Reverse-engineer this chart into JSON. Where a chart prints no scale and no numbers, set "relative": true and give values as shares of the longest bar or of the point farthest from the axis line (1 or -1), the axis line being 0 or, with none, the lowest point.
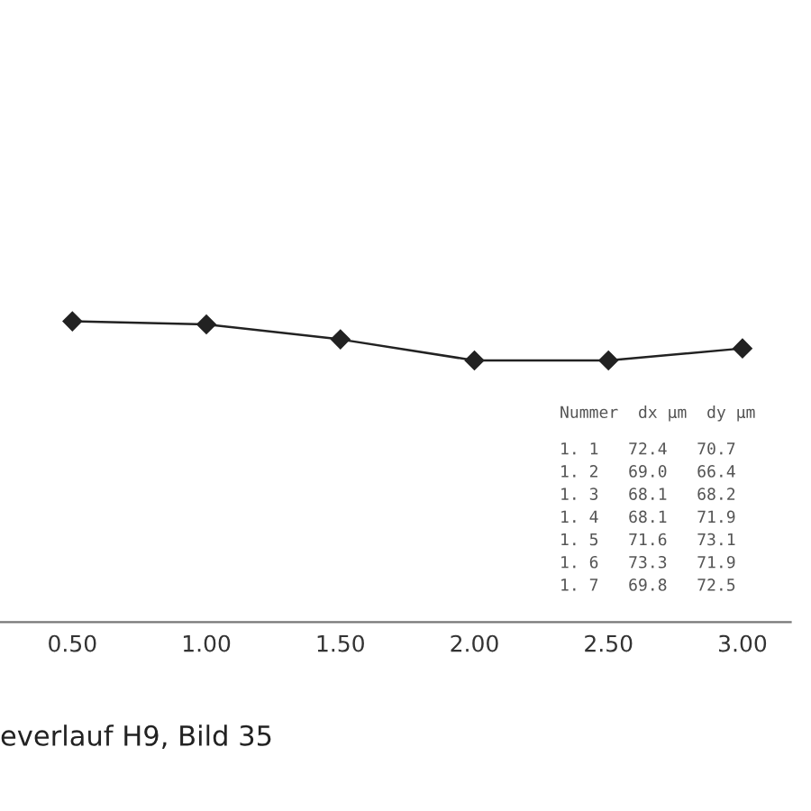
{
  "chart_data": {
    "type": "line",
    "relative": true,
    "x": [
      0.5,
      1.0,
      1.5,
      2.0,
      2.5,
      3.0
    ],
    "series": [
      {
        "color": "#222222",
        "values": [
          1,
          0.99,
          0.94,
          0.87,
          0.87,
          0.91
        ]
      }
    ],
    "xlim": [
      0.23,
      3.18
    ],
    "xticks": [
      {
        "value": 0.5,
        "label": "0.50"
      },
      {
        "value": 1.0,
        "label": "1.00"
      },
      {
        "value": 1.5,
        "label": "1.50"
      },
      {
        "value": 2.0,
        "label": "2.00"
      },
      {
        "value": 2.5,
        "label": "2.50"
      },
      {
        "value": 3.0,
        "label": "3.00"
      }
    ],
    "marker": "diamond",
    "line_style": "solid",
    "grid": false,
    "legend": false,
    "annotations": [
      "Nummer  dx µm  dy µm",
      "1. 1   72.4   70.7",
      "1. 2   69.0   66.4",
      "1. 3   68.1   68.2",
      "1. 4   68.1   71.9",
      "1. 5   71.6   73.1",
      "1. 6   73.3   71.9",
      "1. 7   69.8   72.5",
      "everlauf H9, Bild 35"
    ]
  }
}
